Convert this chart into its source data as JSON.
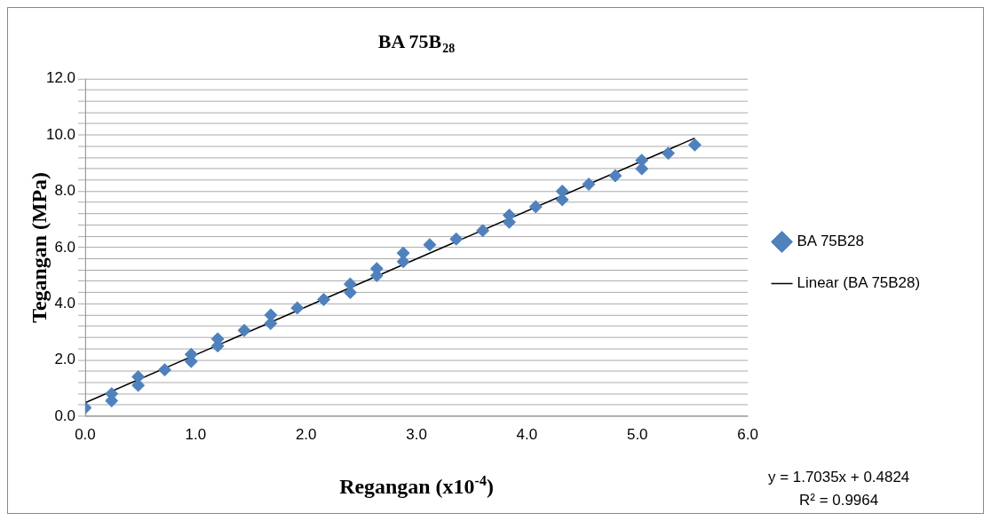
{
  "chart_data": {
    "type": "scatter",
    "title": "BA 75B$_{28}$",
    "xlabel": "Regangan (x10$^{-4}$)",
    "ylabel": "Tegangan (MPa)",
    "series": [
      {
        "name": "BA 75B28",
        "color": "#4f81bd",
        "type": "scatter",
        "marker": "diamond",
        "x": [
          0.0,
          0.24,
          0.24,
          0.48,
          0.48,
          0.72,
          0.96,
          0.96,
          1.2,
          1.2,
          1.44,
          1.68,
          1.68,
          1.92,
          2.16,
          2.4,
          2.4,
          2.64,
          2.64,
          2.88,
          2.88,
          3.12,
          3.36,
          3.6,
          3.84,
          3.84,
          4.08,
          4.32,
          4.32,
          4.56,
          4.8,
          5.04,
          5.04,
          5.28,
          5.52
        ],
        "values": [
          0.3,
          0.55,
          0.8,
          1.1,
          1.4,
          1.65,
          1.95,
          2.2,
          2.5,
          2.75,
          3.05,
          3.3,
          3.6,
          3.85,
          4.15,
          4.4,
          4.7,
          5.0,
          5.25,
          5.5,
          5.8,
          6.1,
          6.3,
          6.6,
          6.9,
          7.15,
          7.45,
          7.7,
          8.0,
          8.25,
          8.55,
          8.8,
          9.1,
          9.35,
          9.65
        ]
      },
      {
        "name": "Linear (BA 75B28)",
        "color": "#000000",
        "type": "line",
        "marker": "none",
        "line_style": "solid",
        "x": [
          0,
          5.52
        ],
        "values": [
          0.48,
          9.89
        ]
      }
    ],
    "xlim": [
      0,
      6
    ],
    "xticks": [
      {
        "value": 0,
        "label": "0.0"
      },
      {
        "value": 1,
        "label": "1.0"
      },
      {
        "value": 2,
        "label": "2.0"
      },
      {
        "value": 3,
        "label": "3.0"
      },
      {
        "value": 4,
        "label": "4.0"
      },
      {
        "value": 5,
        "label": "5.0"
      },
      {
        "value": 6,
        "label": "6.0"
      }
    ],
    "ylim": [
      0,
      12
    ],
    "yticks": [
      {
        "value": 0,
        "label": "0.0"
      },
      {
        "value": 0.4,
        "label": null
      },
      {
        "value": 0.8,
        "label": null
      },
      {
        "value": 1.2,
        "label": null
      },
      {
        "value": 1.6,
        "label": null
      },
      {
        "value": 2,
        "label": "2.0"
      },
      {
        "value": 2.4,
        "label": null
      },
      {
        "value": 2.8,
        "label": null
      },
      {
        "value": 3.2,
        "label": null
      },
      {
        "value": 3.6,
        "label": null
      },
      {
        "value": 4,
        "label": "4.0"
      },
      {
        "value": 4.4,
        "label": null
      },
      {
        "value": 4.8,
        "label": null
      },
      {
        "value": 5.2,
        "label": null
      },
      {
        "value": 5.6,
        "label": null
      },
      {
        "value": 6,
        "label": "6.0"
      },
      {
        "value": 6.4,
        "label": null
      },
      {
        "value": 6.8,
        "label": null
      },
      {
        "value": 7.2,
        "label": null
      },
      {
        "value": 7.6,
        "label": null
      },
      {
        "value": 8,
        "label": "8.0"
      },
      {
        "value": 8.4,
        "label": null
      },
      {
        "value": 8.8,
        "label": null
      },
      {
        "value": 9.2,
        "label": null
      },
      {
        "value": 9.6,
        "label": null
      },
      {
        "value": 10,
        "label": "10.0"
      },
      {
        "value": 10.4,
        "label": null
      },
      {
        "value": 10.8,
        "label": null
      },
      {
        "value": 11.2,
        "label": null
      },
      {
        "value": 11.6,
        "label": null
      },
      {
        "value": 12,
        "label": "12.0"
      }
    ],
    "grid": "y",
    "legend": "right",
    "annotations": [
      "y = 1.7035x + 0.4824",
      "R² = 0.9964"
    ]
  }
}
